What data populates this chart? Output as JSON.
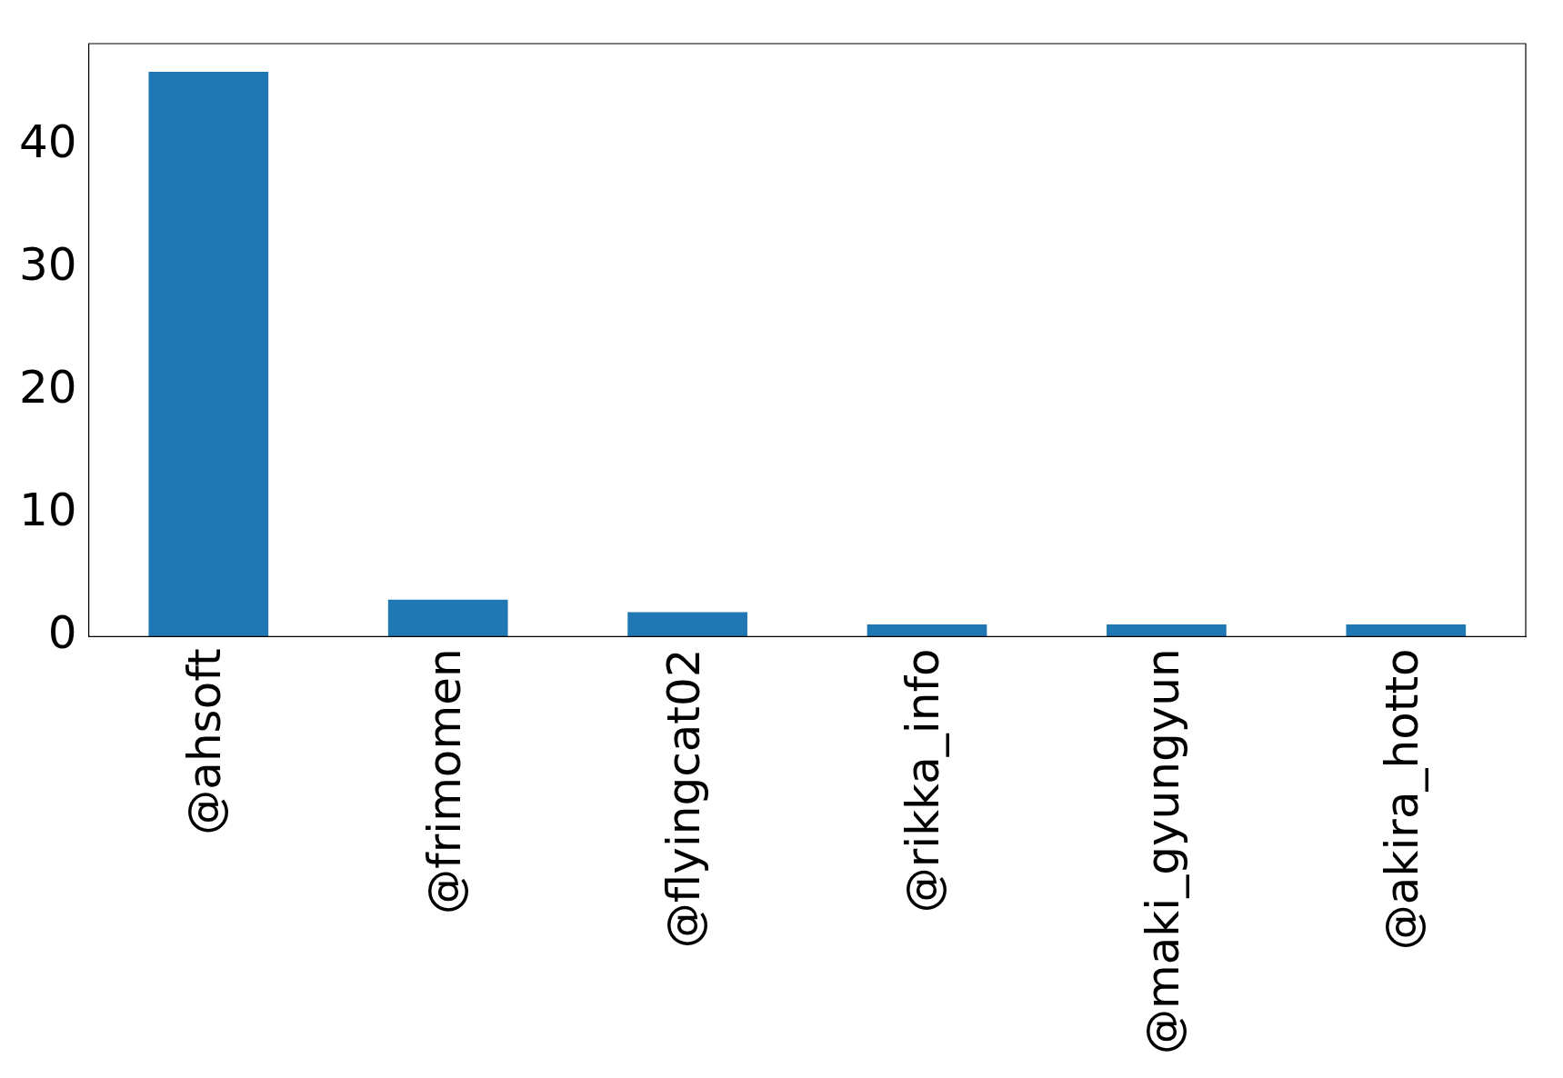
{
  "chart_data": {
    "type": "bar",
    "categories": [
      "@ahsoft",
      "@frimomen",
      "@flyingcat02",
      "@rikka_info",
      "@maki_gyungyun",
      "@akira_hotto"
    ],
    "values": [
      46,
      3,
      2,
      1,
      1,
      1
    ],
    "color": "#1f77b4",
    "ylim": [
      0,
      48.3
    ],
    "yticks": [
      0,
      10,
      20,
      30,
      40
    ],
    "grid": false,
    "legend": false
  }
}
